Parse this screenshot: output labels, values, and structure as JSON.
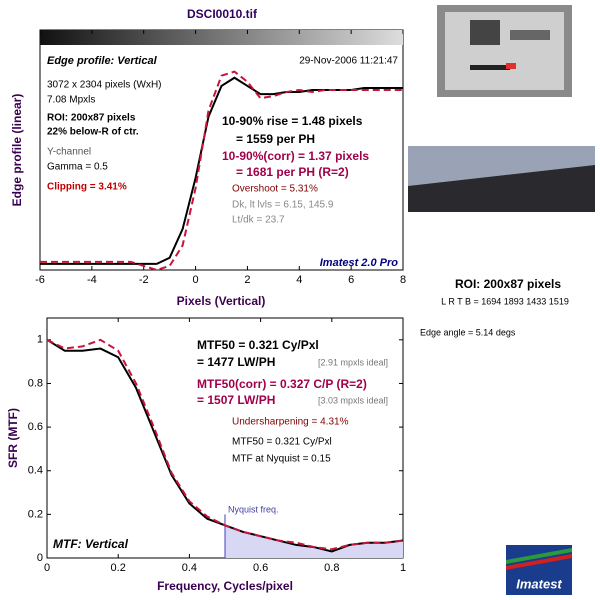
{
  "header": {
    "title": "DSCI0010.tif"
  },
  "chart_data": [
    {
      "type": "line",
      "title": "Edge profile: Vertical",
      "date": "29-Nov-2006 11:21:47",
      "x_label": "Pixels (Vertical)",
      "y_label": "Edge profile (linear)",
      "x": [
        -6,
        -5.5,
        -5,
        -4.5,
        -4,
        -3.5,
        -3,
        -2.5,
        -2,
        -1.5,
        -1,
        -0.5,
        0,
        0.5,
        1,
        1.5,
        2,
        2.5,
        3,
        3.5,
        4,
        4.5,
        5,
        5.5,
        6,
        6.5,
        7,
        7.5,
        8
      ],
      "series": [
        {
          "color": "#000000",
          "dashed": false,
          "values": [
            0.03,
            0.03,
            0.03,
            0.03,
            0.03,
            0.03,
            0.03,
            0.03,
            0.03,
            0.03,
            0.06,
            0.2,
            0.45,
            0.75,
            0.9,
            0.94,
            0.9,
            0.86,
            0.86,
            0.87,
            0.87,
            0.88,
            0.88,
            0.88,
            0.88,
            0.89,
            0.89,
            0.89,
            0.89
          ]
        },
        {
          "color": "#c8143c",
          "dashed": true,
          "values": [
            0.04,
            0.04,
            0.04,
            0.04,
            0.04,
            0.04,
            0.04,
            0.04,
            0.02,
            0.0,
            0.02,
            0.12,
            0.4,
            0.78,
            0.95,
            0.97,
            0.92,
            0.84,
            0.85,
            0.87,
            0.88,
            0.87,
            0.88,
            0.88,
            0.88,
            0.88,
            0.88,
            0.88,
            0.88
          ]
        }
      ],
      "xlim": [
        -6,
        8
      ],
      "xticks": [
        -6,
        -4,
        -2,
        0,
        2,
        4,
        6,
        8
      ],
      "ylim": [
        0,
        1.1
      ],
      "annotations": [
        {
          "text": "3072 x 2304 pixels (WxH)",
          "color": "#000000"
        },
        {
          "text": "7.08 Mpxls",
          "color": "#000000"
        },
        {
          "text": "ROI: 200x87 pixels",
          "color": "#000000"
        },
        {
          "text": "22% below-R of ctr.",
          "color": "#000000"
        },
        {
          "text": "Y-channel",
          "color": "#555555"
        },
        {
          "text": "Gamma = 0.5",
          "color": "#000000"
        },
        {
          "text": "Clipping =  3.41%",
          "color": "#c00000"
        },
        {
          "text": "10-90% rise = 1.48 pixels",
          "color": "#000000"
        },
        {
          "text": "= 1559 per PH",
          "color": "#000000"
        },
        {
          "text": "10-90%(corr) = 1.37 pixels",
          "color": "#a0004a"
        },
        {
          "text": "= 1681 per PH  (R=2)",
          "color": "#a0004a"
        },
        {
          "text": "Overshoot = 5.31%",
          "color": "#800000"
        },
        {
          "text": "Dk, lt lvls = 6.15, 145.9",
          "color": "#888888"
        },
        {
          "text": "Lt/dk = 23.7",
          "color": "#888888"
        },
        {
          "text": "Imatest 2.0 Pro",
          "color": "#000080"
        }
      ]
    },
    {
      "type": "line",
      "title": "MTF: Vertical",
      "x_label": "Frequency, Cycles/pixel",
      "y_label": "SFR (MTF)",
      "nyquist_label": "Nyquist freq.",
      "nyquist_x": 0.5,
      "x": [
        0,
        0.05,
        0.1,
        0.15,
        0.2,
        0.25,
        0.3,
        0.35,
        0.4,
        0.45,
        0.5,
        0.55,
        0.6,
        0.65,
        0.7,
        0.75,
        0.8,
        0.85,
        0.9,
        0.95,
        1
      ],
      "series": [
        {
          "color": "#000000",
          "dashed": false,
          "values": [
            1.0,
            0.95,
            0.95,
            0.96,
            0.92,
            0.78,
            0.58,
            0.38,
            0.25,
            0.18,
            0.15,
            0.12,
            0.1,
            0.08,
            0.06,
            0.05,
            0.03,
            0.06,
            0.07,
            0.07,
            0.08
          ]
        },
        {
          "color": "#c8143c",
          "dashed": true,
          "values": [
            1.0,
            0.96,
            0.97,
            1.0,
            0.95,
            0.8,
            0.6,
            0.39,
            0.26,
            0.19,
            0.15,
            0.12,
            0.1,
            0.08,
            0.07,
            0.05,
            0.04,
            0.06,
            0.07,
            0.07,
            0.08
          ]
        }
      ],
      "xlim": [
        0,
        1
      ],
      "xticks": [
        0,
        0.2,
        0.4,
        0.6,
        0.8,
        1
      ],
      "ylim": [
        0,
        1.1
      ],
      "yticks": [
        0,
        0.2,
        0.4,
        0.6,
        0.8,
        1
      ],
      "annotations": [
        {
          "text": "MTF50 = 0.321 Cy/Pxl",
          "color": "#000000"
        },
        {
          "text": "= 1477 LW/PH",
          "color": "#000000"
        },
        {
          "text": "[2.91 mpxls ideal]",
          "color": "#777777"
        },
        {
          "text": "MTF50(corr) = 0.327 C/P  (R=2)",
          "color": "#a0004a"
        },
        {
          "text": "= 1507 LW/PH",
          "color": "#a0004a"
        },
        {
          "text": "[3.03 mpxls ideal]",
          "color": "#777777"
        },
        {
          "text": "Undersharpening = 4.31%",
          "color": "#800000"
        },
        {
          "text": "MTF50 = 0.321 Cy/Pxl",
          "color": "#000000"
        },
        {
          "text": "MTF at Nyquist = 0.15",
          "color": "#000000"
        }
      ]
    }
  ],
  "side_panel": {
    "roi": "ROI: 200x87 pixels",
    "lrtb": "L R  T B = 1694 1893  1433 1519",
    "edge_angle": "Edge angle = 5.14 degs"
  },
  "logo": {
    "text": "Imatest"
  }
}
